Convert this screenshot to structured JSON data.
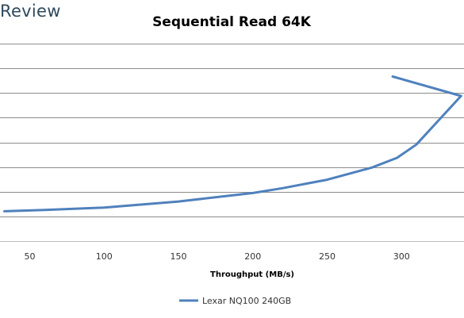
{
  "brand": {
    "text": "Review",
    "color": "#2f4a5c"
  },
  "chart_data": {
    "type": "line",
    "title": "Sequential Read 64K",
    "xlabel": "Throughput (MB/s)",
    "ylabel": "",
    "xlim": [
      30,
      342
    ],
    "x_ticks": [
      50,
      100,
      150,
      200,
      250,
      300
    ],
    "y_gridlines": 8,
    "grid": true,
    "legend_position": "bottom",
    "series": [
      {
        "name": "Lexar NQ100 240GB",
        "color": "#4f81bd",
        "points": [
          {
            "x": 33,
            "y": 0.05
          },
          {
            "x": 60,
            "y": 0.06
          },
          {
            "x": 100,
            "y": 0.08
          },
          {
            "x": 150,
            "y": 0.13
          },
          {
            "x": 200,
            "y": 0.2
          },
          {
            "x": 220,
            "y": 0.24
          },
          {
            "x": 250,
            "y": 0.31
          },
          {
            "x": 280,
            "y": 0.41
          },
          {
            "x": 297,
            "y": 0.49
          },
          {
            "x": 310,
            "y": 0.6
          },
          {
            "x": 325,
            "y": 0.8
          },
          {
            "x": 340,
            "y": 1.0
          },
          {
            "x": 294,
            "y": 1.16
          }
        ]
      }
    ]
  }
}
